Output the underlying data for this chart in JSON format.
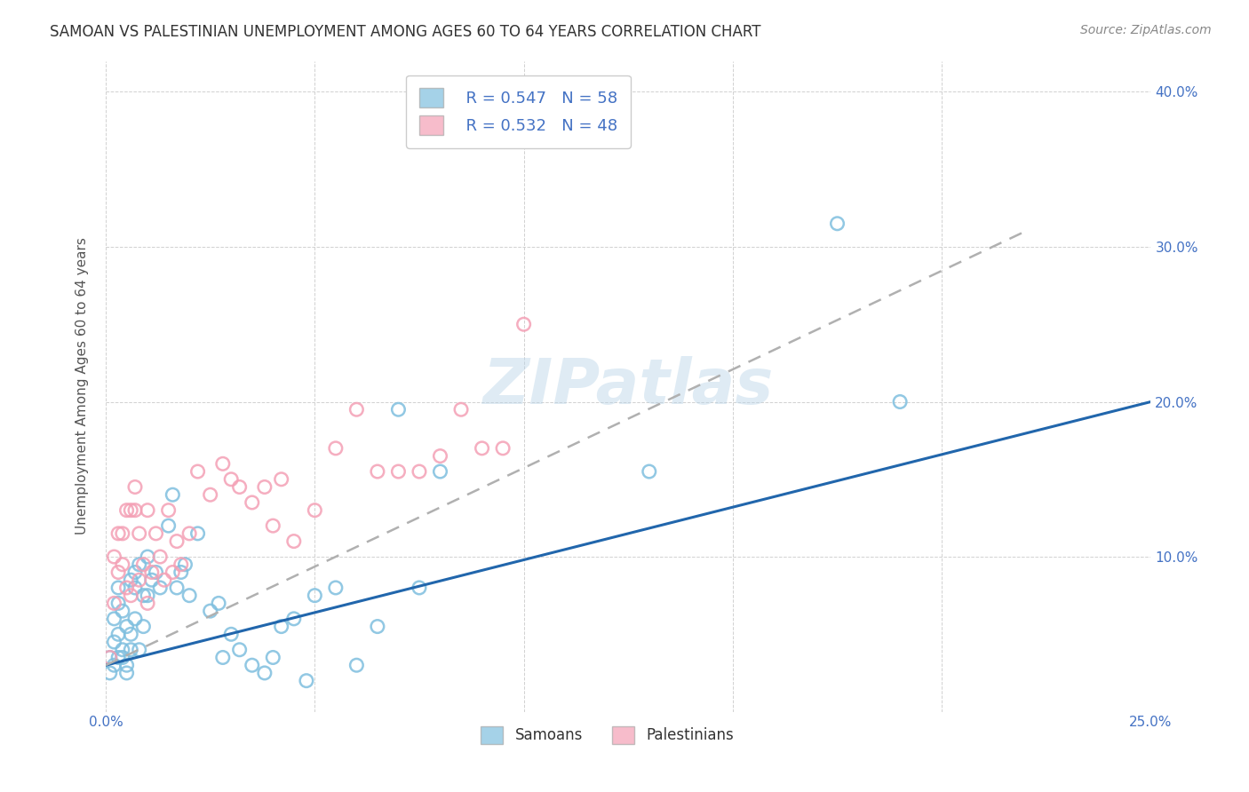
{
  "title": "SAMOAN VS PALESTINIAN UNEMPLOYMENT AMONG AGES 60 TO 64 YEARS CORRELATION CHART",
  "source": "Source: ZipAtlas.com",
  "ylabel": "Unemployment Among Ages 60 to 64 years",
  "xlim": [
    0.0,
    0.25
  ],
  "ylim": [
    0.0,
    0.42
  ],
  "xticks": [
    0.0,
    0.05,
    0.1,
    0.15,
    0.2,
    0.25
  ],
  "yticks": [
    0.1,
    0.2,
    0.3,
    0.4
  ],
  "xtick_labels": [
    "0.0%",
    "",
    "",
    "",
    "",
    "25.0%"
  ],
  "ytick_labels": [
    "10.0%",
    "20.0%",
    "30.0%",
    "40.0%"
  ],
  "samoan_color": "#7fbfdf",
  "palestinian_color": "#f4a0b5",
  "samoan_line_color": "#2166ac",
  "palestinian_line_color": "#b0b0b0",
  "watermark": "ZIPatlas",
  "legend_r_samoan": "R = 0.547",
  "legend_n_samoan": "N = 58",
  "legend_r_palestinian": "R = 0.532",
  "legend_n_palestinian": "N = 48",
  "samoan_x": [
    0.001,
    0.001,
    0.002,
    0.002,
    0.002,
    0.003,
    0.003,
    0.003,
    0.003,
    0.004,
    0.004,
    0.004,
    0.005,
    0.005,
    0.005,
    0.006,
    0.006,
    0.006,
    0.007,
    0.007,
    0.007,
    0.008,
    0.008,
    0.009,
    0.009,
    0.01,
    0.01,
    0.011,
    0.012,
    0.013,
    0.015,
    0.016,
    0.017,
    0.018,
    0.019,
    0.02,
    0.022,
    0.025,
    0.027,
    0.028,
    0.03,
    0.032,
    0.035,
    0.038,
    0.04,
    0.042,
    0.045,
    0.048,
    0.05,
    0.055,
    0.06,
    0.065,
    0.07,
    0.075,
    0.08,
    0.13,
    0.175,
    0.19
  ],
  "samoan_y": [
    0.035,
    0.025,
    0.045,
    0.03,
    0.06,
    0.05,
    0.035,
    0.07,
    0.08,
    0.04,
    0.065,
    0.035,
    0.055,
    0.025,
    0.03,
    0.085,
    0.05,
    0.04,
    0.09,
    0.08,
    0.06,
    0.095,
    0.04,
    0.075,
    0.055,
    0.1,
    0.075,
    0.085,
    0.09,
    0.08,
    0.12,
    0.14,
    0.08,
    0.09,
    0.095,
    0.075,
    0.115,
    0.065,
    0.07,
    0.035,
    0.05,
    0.04,
    0.03,
    0.025,
    0.035,
    0.055,
    0.06,
    0.02,
    0.075,
    0.08,
    0.03,
    0.055,
    0.195,
    0.08,
    0.155,
    0.155,
    0.315,
    0.2
  ],
  "palestinian_x": [
    0.001,
    0.002,
    0.002,
    0.003,
    0.003,
    0.004,
    0.004,
    0.005,
    0.005,
    0.006,
    0.006,
    0.007,
    0.007,
    0.008,
    0.008,
    0.009,
    0.01,
    0.01,
    0.011,
    0.012,
    0.013,
    0.014,
    0.015,
    0.016,
    0.017,
    0.018,
    0.02,
    0.022,
    0.025,
    0.028,
    0.03,
    0.032,
    0.035,
    0.038,
    0.04,
    0.042,
    0.045,
    0.05,
    0.055,
    0.06,
    0.065,
    0.07,
    0.075,
    0.08,
    0.085,
    0.09,
    0.095,
    0.1
  ],
  "palestinian_y": [
    0.035,
    0.07,
    0.1,
    0.115,
    0.09,
    0.115,
    0.095,
    0.08,
    0.13,
    0.075,
    0.13,
    0.145,
    0.13,
    0.085,
    0.115,
    0.095,
    0.07,
    0.13,
    0.09,
    0.115,
    0.1,
    0.085,
    0.13,
    0.09,
    0.11,
    0.095,
    0.115,
    0.155,
    0.14,
    0.16,
    0.15,
    0.145,
    0.135,
    0.145,
    0.12,
    0.15,
    0.11,
    0.13,
    0.17,
    0.195,
    0.155,
    0.155,
    0.155,
    0.165,
    0.195,
    0.17,
    0.17,
    0.25
  ],
  "samoan_line_x": [
    0.0,
    0.25
  ],
  "samoan_line_y": [
    0.03,
    0.2
  ],
  "palestinian_line_x": [
    0.0,
    0.22
  ],
  "palestinian_line_y": [
    0.03,
    0.31
  ]
}
